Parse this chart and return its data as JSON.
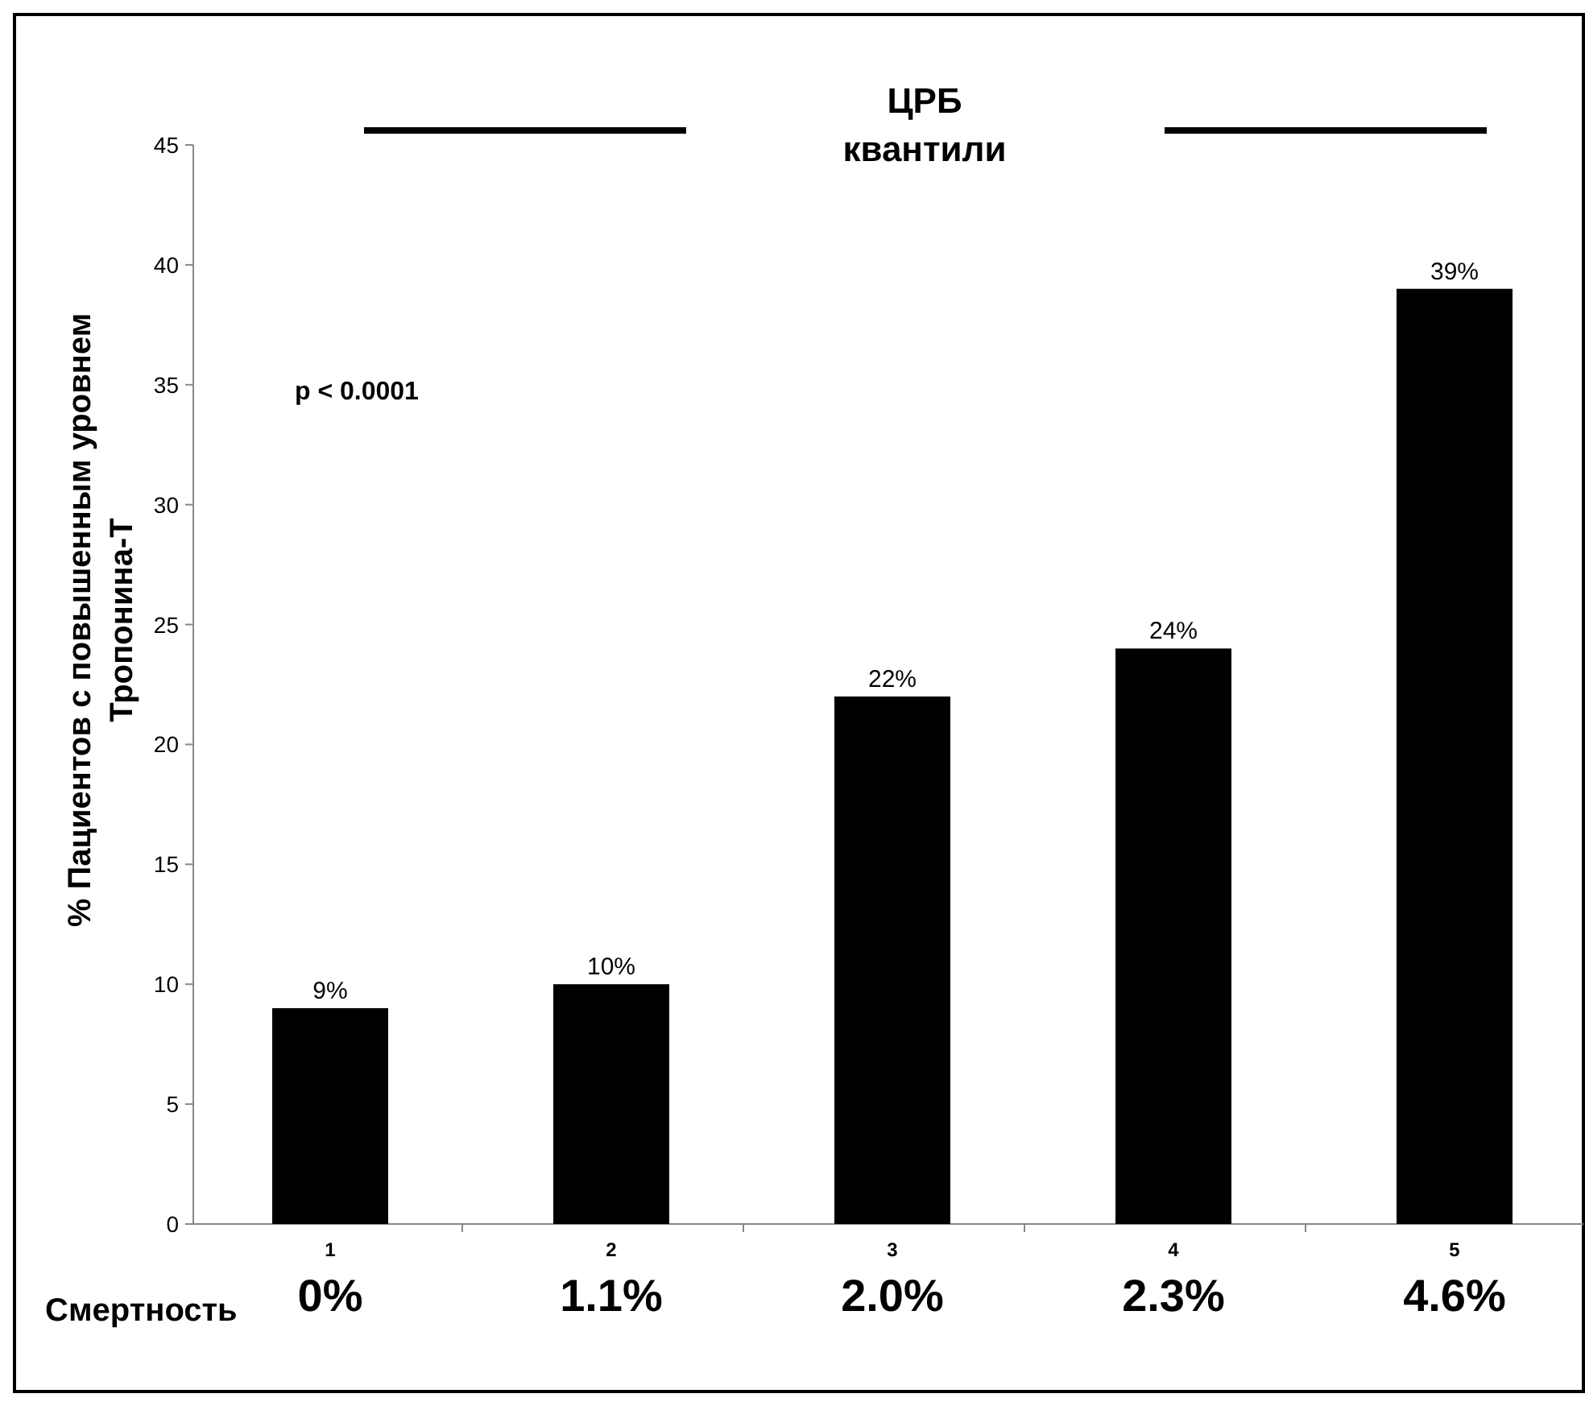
{
  "chart_data": {
    "type": "bar",
    "title": "ЦРБ квантили",
    "ylabel": "% Пациентов с повышенным  уровнем Тропонина-Т",
    "categories": [
      "1",
      "2",
      "3",
      "4",
      "5"
    ],
    "values": [
      9,
      10,
      22,
      24,
      39
    ],
    "color": "#000000",
    "value_labels": [
      "9%",
      "10%",
      "22%",
      "24%",
      "39%"
    ],
    "ylim": [
      0,
      45
    ],
    "yticks": [
      0,
      5,
      10,
      15,
      20,
      25,
      30,
      35,
      40,
      45
    ],
    "grid": false,
    "annotations": [
      "p < 0.0001",
      "0%",
      "1.1%",
      "2.0%",
      "2.3%",
      "4.6%",
      "Смертность"
    ]
  }
}
